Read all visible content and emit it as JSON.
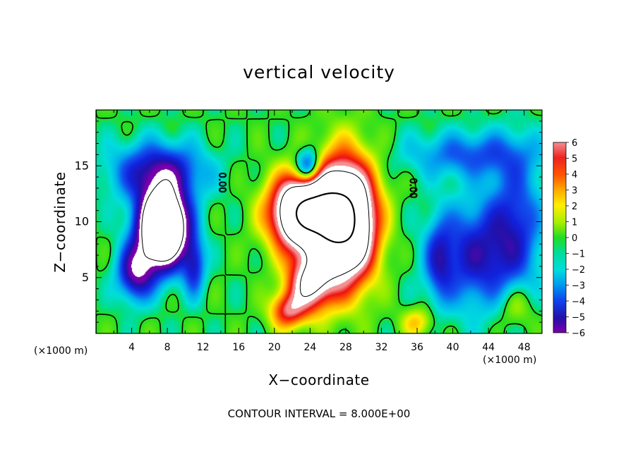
{
  "chart_data": {
    "type": "heatmap",
    "title": "vertical velocity",
    "xlabel": "X−coordinate",
    "ylabel": "Z−coordinate",
    "x_units_left": "(×1000 m)",
    "x_units_right": "(×1000 m)",
    "xlim": [
      0,
      50
    ],
    "ylim": [
      0,
      20
    ],
    "x_ticks": [
      4,
      8,
      12,
      16,
      20,
      24,
      28,
      32,
      36,
      40,
      44,
      48
    ],
    "y_ticks": [
      5,
      10,
      15
    ],
    "colorbar_ticks": [
      6,
      5,
      4,
      3,
      2,
      1,
      0,
      -1,
      -2,
      -3,
      -4,
      -5,
      -6
    ],
    "colorbar_labels": [
      "6",
      "5",
      "4",
      "3",
      "2",
      "1",
      "0",
      "−1",
      "−2",
      "−3",
      "−4",
      "−5",
      "−6"
    ],
    "colorbar_range": [
      -6,
      6
    ],
    "contour_interval_text": "CONTOUR INTERVAL = 8.000E+00",
    "contour_labels": [
      {
        "text": "0.00",
        "x": 13.8,
        "y": 13.5
      },
      {
        "text": "0.00",
        "x": 35.2,
        "y": 13.0
      }
    ],
    "colors": {
      "positive_max": "#ffffff",
      "red": "#ee1111",
      "yellow": "#f8f000",
      "green": "#22dd22",
      "cyan": "#00dddd",
      "blue": "#1122dd",
      "negative_max": "#7700aa"
    },
    "features": [
      {
        "name": "updraft core",
        "x": 26,
        "z": 10,
        "value": 12
      },
      {
        "name": "downdraft core",
        "x": 7.5,
        "z": 9,
        "value": -12
      },
      {
        "name": "right downdraft region",
        "x": 42,
        "z": 6,
        "value": -5
      }
    ]
  }
}
